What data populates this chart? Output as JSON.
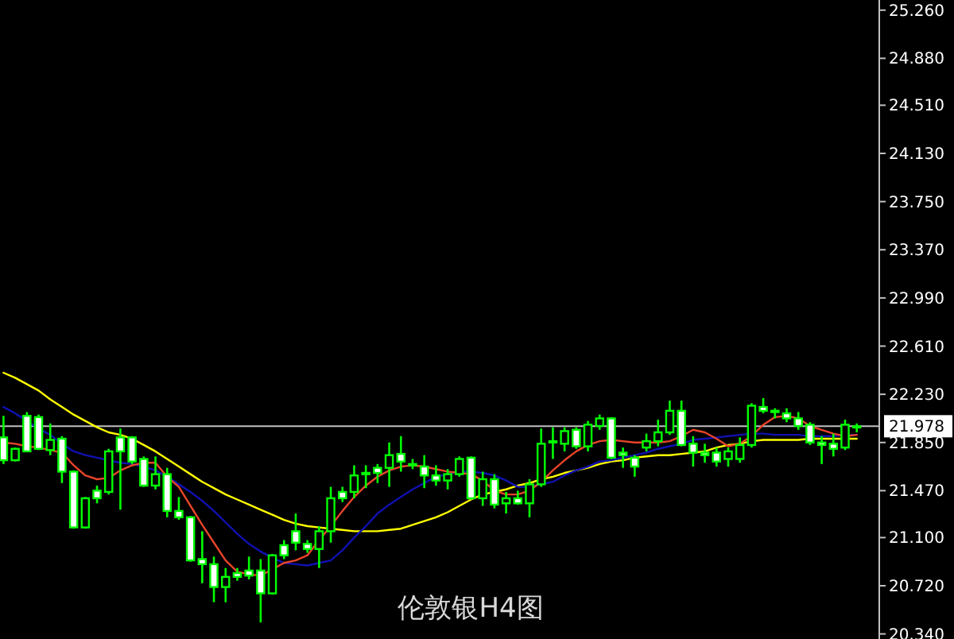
{
  "chart_data": {
    "type": "candlestick",
    "title": "伦敦银H4图",
    "categories": [
      null,
      null,
      null,
      null,
      null,
      null,
      null,
      null,
      null,
      null,
      null,
      null,
      null,
      null,
      null,
      null,
      null,
      null,
      null,
      null,
      null,
      null,
      null,
      null,
      null,
      null,
      null,
      null,
      null,
      null,
      null,
      null,
      null,
      null,
      null,
      null,
      null,
      null,
      null,
      null,
      null,
      null,
      null,
      null,
      null,
      null,
      null,
      null,
      null,
      null,
      null,
      null,
      null,
      null,
      null,
      null,
      null,
      null,
      null,
      null,
      null,
      null,
      null,
      null,
      null,
      null,
      null,
      null,
      null,
      null,
      null,
      null,
      null,
      null
    ],
    "ohlc": [
      [
        21.89,
        22.06,
        21.68,
        21.71
      ],
      [
        21.71,
        21.81,
        21.7,
        21.8
      ],
      [
        22.06,
        22.09,
        21.78,
        21.78
      ],
      [
        22.05,
        22.07,
        21.79,
        21.8
      ],
      [
        21.79,
        22.0,
        21.75,
        21.87
      ],
      [
        21.88,
        21.9,
        21.53,
        21.62
      ],
      [
        21.62,
        21.63,
        21.17,
        21.18
      ],
      [
        21.18,
        21.42,
        21.17,
        21.41
      ],
      [
        21.47,
        21.51,
        21.37,
        21.41
      ],
      [
        21.46,
        21.8,
        21.44,
        21.78
      ],
      [
        21.89,
        21.96,
        21.32,
        21.78
      ],
      [
        21.89,
        21.9,
        21.68,
        21.7
      ],
      [
        21.72,
        21.74,
        21.5,
        21.51
      ],
      [
        21.51,
        21.74,
        21.48,
        21.6
      ],
      [
        21.6,
        21.65,
        21.26,
        21.31
      ],
      [
        21.31,
        21.42,
        21.24,
        21.26
      ],
      [
        21.26,
        21.27,
        20.91,
        20.92
      ],
      [
        20.93,
        21.15,
        20.74,
        20.89
      ],
      [
        20.89,
        20.95,
        20.59,
        20.71
      ],
      [
        20.71,
        20.86,
        20.59,
        20.79
      ],
      [
        20.82,
        20.86,
        20.76,
        20.79
      ],
      [
        20.84,
        20.95,
        20.77,
        20.8
      ],
      [
        20.84,
        20.93,
        20.43,
        20.66
      ],
      [
        20.66,
        20.97,
        20.65,
        20.96
      ],
      [
        21.04,
        21.08,
        20.93,
        20.96
      ],
      [
        21.15,
        21.29,
        21.0,
        21.06
      ],
      [
        21.05,
        21.08,
        20.98,
        21.01
      ],
      [
        21.01,
        21.19,
        20.86,
        21.15
      ],
      [
        21.15,
        21.5,
        21.06,
        21.41
      ],
      [
        21.46,
        21.5,
        21.38,
        21.41
      ],
      [
        21.46,
        21.67,
        21.41,
        21.59
      ],
      [
        21.6,
        21.67,
        21.49,
        21.61
      ],
      [
        21.65,
        21.68,
        21.53,
        21.61
      ],
      [
        21.65,
        21.85,
        21.5,
        21.75
      ],
      [
        21.76,
        21.9,
        21.62,
        21.7
      ],
      [
        21.68,
        21.72,
        21.64,
        21.67
      ],
      [
        21.66,
        21.75,
        21.49,
        21.59
      ],
      [
        21.59,
        21.67,
        21.51,
        21.55
      ],
      [
        21.55,
        21.64,
        21.48,
        21.6
      ],
      [
        21.6,
        21.74,
        21.58,
        21.72
      ],
      [
        21.73,
        21.74,
        21.4,
        21.41
      ],
      [
        21.41,
        21.62,
        21.35,
        21.56
      ],
      [
        21.56,
        21.6,
        21.33,
        21.36
      ],
      [
        21.37,
        21.46,
        21.29,
        21.41
      ],
      [
        21.41,
        21.47,
        21.36,
        21.37
      ],
      [
        21.37,
        21.56,
        21.26,
        21.52
      ],
      [
        21.52,
        21.96,
        21.5,
        21.84
      ],
      [
        21.85,
        21.97,
        21.72,
        21.86
      ],
      [
        21.84,
        21.97,
        21.78,
        21.94
      ],
      [
        21.95,
        21.97,
        21.8,
        21.82
      ],
      [
        21.82,
        22.02,
        21.78,
        21.99
      ],
      [
        21.98,
        22.07,
        21.95,
        22.04
      ],
      [
        22.04,
        22.05,
        21.72,
        21.73
      ],
      [
        21.77,
        21.81,
        21.65,
        21.75
      ],
      [
        21.73,
        21.75,
        21.58,
        21.66
      ],
      [
        21.81,
        21.92,
        21.78,
        21.86
      ],
      [
        21.86,
        22.03,
        21.82,
        21.93
      ],
      [
        21.93,
        22.18,
        21.91,
        22.1
      ],
      [
        22.1,
        22.18,
        21.82,
        21.83
      ],
      [
        21.84,
        21.9,
        21.66,
        21.77
      ],
      [
        21.77,
        21.84,
        21.69,
        21.75
      ],
      [
        21.77,
        21.81,
        21.66,
        21.7
      ],
      [
        21.72,
        21.81,
        21.66,
        21.78
      ],
      [
        21.72,
        21.89,
        21.69,
        21.83
      ],
      [
        21.83,
        22.16,
        21.81,
        22.14
      ],
      [
        22.13,
        22.2,
        22.08,
        22.1
      ],
      [
        22.09,
        22.12,
        22.04,
        22.1
      ],
      [
        22.08,
        22.12,
        22.01,
        22.04
      ],
      [
        22.04,
        22.09,
        21.95,
        21.98
      ],
      [
        21.99,
        22.01,
        21.83,
        21.85
      ],
      [
        21.85,
        21.9,
        21.68,
        21.83
      ],
      [
        21.84,
        21.92,
        21.74,
        21.8
      ],
      [
        21.81,
        22.03,
        21.79,
        21.99
      ],
      [
        21.978,
        22.0,
        21.93,
        21.978
      ]
    ],
    "color": "#00ff00",
    "colors": [
      "#ffffff",
      "#000000",
      "#ffffff",
      "#ffffff",
      "#000000",
      "#ffffff",
      "#ffffff",
      "#000000",
      "#ffffff",
      "#000000",
      "#ffffff",
      "#ffffff",
      "#ffffff",
      "#000000",
      "#ffffff",
      "#ffffff",
      "#ffffff",
      "#ffffff",
      "#ffffff",
      "#000000",
      "#ffffff",
      "#ffffff",
      "#ffffff",
      "#000000",
      "#ffffff",
      "#ffffff",
      "#ffffff",
      "#000000",
      "#000000",
      "#ffffff",
      "#000000",
      "#000000",
      "#ffffff",
      "#000000",
      "#ffffff",
      "#ffffff",
      "#ffffff",
      "#ffffff",
      "#000000",
      "#000000",
      "#ffffff",
      "#000000",
      "#ffffff",
      "#000000",
      "#ffffff",
      "#000000",
      "#000000",
      "#000000",
      "#000000",
      "#ffffff",
      "#000000",
      "#000000",
      "#ffffff",
      "#ffffff",
      "#ffffff",
      "#000000",
      "#000000",
      "#000000",
      "#ffffff",
      "#ffffff",
      "#ffffff",
      "#ffffff",
      "#000000",
      "#000000",
      "#000000",
      "#ffffff",
      "#000000",
      "#ffffff",
      "#ffffff",
      "#ffffff",
      "#ffffff",
      "#ffffff",
      "#000000",
      "#000000"
    ],
    "series": [
      {
        "type": "line",
        "color": "#ffff00",
        "values": [
          22.4,
          22.36,
          22.31,
          22.26,
          22.19,
          22.13,
          22.07,
          22.02,
          21.97,
          21.93,
          21.91,
          21.88,
          21.83,
          21.78,
          21.72,
          21.66,
          21.6,
          21.54,
          21.49,
          21.44,
          21.4,
          21.36,
          21.32,
          21.28,
          21.24,
          21.21,
          21.19,
          21.18,
          21.17,
          21.16,
          21.15,
          21.15,
          21.15,
          21.16,
          21.17,
          21.2,
          21.23,
          21.26,
          21.3,
          21.35,
          21.4,
          21.44,
          21.46,
          21.48,
          21.51,
          21.53,
          21.56,
          21.58,
          21.61,
          21.63,
          21.65,
          21.68,
          21.7,
          21.71,
          21.73,
          21.74,
          21.75,
          21.75,
          21.76,
          21.77,
          21.78,
          21.81,
          21.83,
          21.84,
          21.86,
          21.87,
          21.87,
          21.87,
          21.87,
          21.88,
          21.88,
          21.88,
          21.88,
          21.88
        ]
      },
      {
        "type": "line",
        "color": "#1010b0",
        "values": [
          22.13,
          22.08,
          22.02,
          21.96,
          21.91,
          21.84,
          21.78,
          21.75,
          21.73,
          21.71,
          21.69,
          21.68,
          21.66,
          21.63,
          21.58,
          21.52,
          21.46,
          21.39,
          21.31,
          21.22,
          21.13,
          21.05,
          20.99,
          20.94,
          20.9,
          20.89,
          20.88,
          20.9,
          20.92,
          21.0,
          21.1,
          21.19,
          21.29,
          21.36,
          21.42,
          21.48,
          21.53,
          21.58,
          21.6,
          21.62,
          21.62,
          21.61,
          21.59,
          21.55,
          21.5,
          21.5,
          21.52,
          21.54,
          21.59,
          21.63,
          21.66,
          21.7,
          21.71,
          21.73,
          21.75,
          21.77,
          21.8,
          21.82,
          21.84,
          21.87,
          21.88,
          21.89,
          21.9,
          21.91,
          21.92,
          21.92,
          21.91,
          21.91,
          21.91,
          21.9,
          21.9,
          21.9,
          21.91,
          21.91
        ]
      },
      {
        "type": "line",
        "color": "#e8442a",
        "values": [
          21.85,
          21.84,
          21.82,
          21.81,
          21.79,
          21.77,
          21.67,
          21.59,
          21.56,
          21.57,
          21.63,
          21.67,
          21.69,
          21.69,
          21.58,
          21.5,
          21.35,
          21.2,
          21.06,
          20.92,
          20.83,
          20.81,
          20.8,
          20.85,
          20.9,
          20.92,
          20.96,
          21.08,
          21.19,
          21.31,
          21.42,
          21.51,
          21.58,
          21.63,
          21.66,
          21.67,
          21.66,
          21.64,
          21.62,
          21.61,
          21.6,
          21.55,
          21.47,
          21.44,
          21.44,
          21.47,
          21.54,
          21.63,
          21.71,
          21.78,
          21.83,
          21.86,
          21.87,
          21.86,
          21.85,
          21.85,
          21.85,
          21.86,
          21.9,
          21.95,
          21.93,
          21.88,
          21.82,
          21.84,
          21.9,
          21.99,
          22.05,
          22.06,
          22.04,
          21.98,
          21.95,
          21.92,
          21.9,
          21.91
        ]
      }
    ],
    "ylim": [
      20.3,
      25.34
    ],
    "yticks": [
      {
        "value": 25.26,
        "label": "25.260"
      },
      {
        "value": 24.88,
        "label": "24.880"
      },
      {
        "value": 24.51,
        "label": "24.510"
      },
      {
        "value": 24.13,
        "label": "24.130"
      },
      {
        "value": 23.75,
        "label": "23.750"
      },
      {
        "value": 23.37,
        "label": "23.370"
      },
      {
        "value": 22.99,
        "label": "22.990"
      },
      {
        "value": 22.61,
        "label": "22.610"
      },
      {
        "value": 22.23,
        "label": "22.230"
      },
      {
        "value": 21.85,
        "label": "21.850"
      },
      {
        "value": 21.47,
        "label": "21.470"
      },
      {
        "value": 21.1,
        "label": "21.100"
      },
      {
        "value": 20.72,
        "label": "20.720"
      },
      {
        "value": 20.34,
        "label": "20.340"
      }
    ],
    "ref_lines": [
      {
        "axis": "y",
        "value": 21.978,
        "label": "21.978",
        "color": "#c0c0c0"
      }
    ],
    "grid": false
  }
}
